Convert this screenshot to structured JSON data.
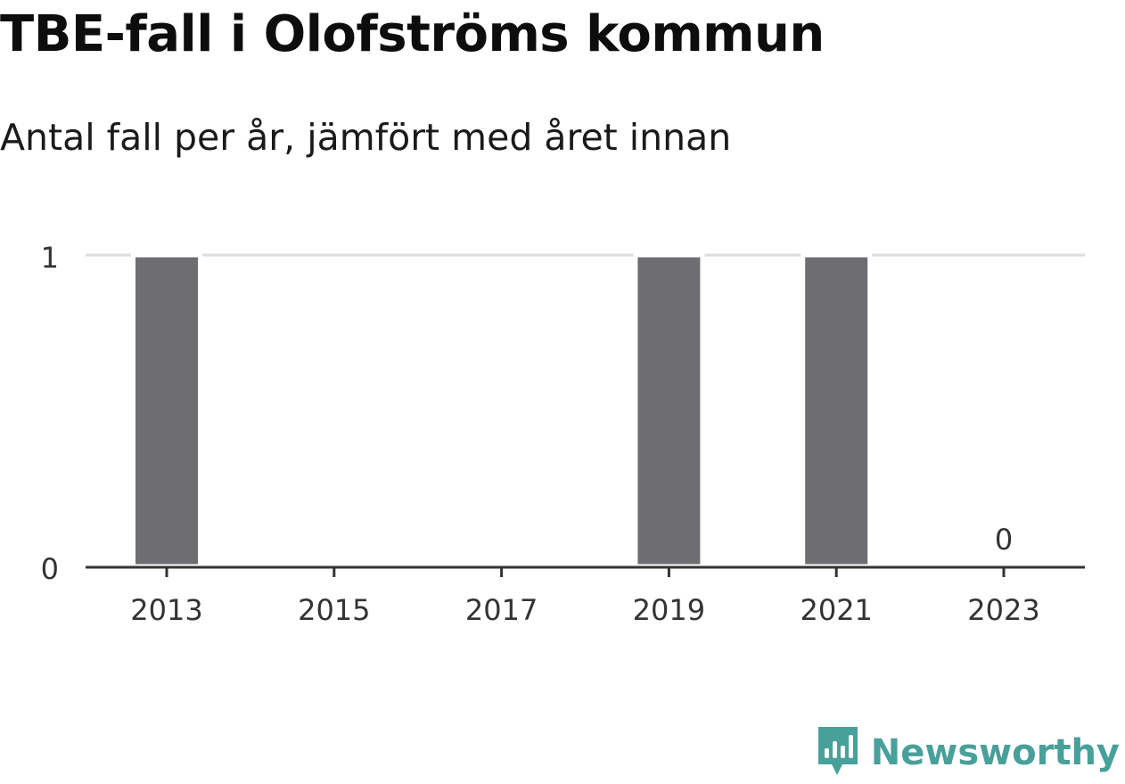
{
  "header": {
    "title": "TBE-fall i Olofströms kommun",
    "subtitle": "Antal fall per år, jämfört med året innan"
  },
  "chart_data": {
    "type": "bar",
    "categories": [
      "2013",
      "2014",
      "2015",
      "2016",
      "2017",
      "2018",
      "2019",
      "2020",
      "2021",
      "2022",
      "2023"
    ],
    "values": [
      1,
      0,
      0,
      0,
      0,
      0,
      1,
      0,
      1,
      0,
      0
    ],
    "ylim": [
      0,
      1
    ],
    "y_ticks": [
      0,
      1
    ],
    "x_tick_labels": [
      "2013",
      "2015",
      "2017",
      "2019",
      "2021",
      "2023"
    ],
    "data_labels": [
      {
        "category": "2023",
        "text": "0"
      }
    ],
    "bar_color": "#6e6d72",
    "grid": true,
    "grid_color": "#dddddd",
    "xlabel": "",
    "ylabel": ""
  },
  "brand": {
    "name": "Newsworthy",
    "color": "#48a09a"
  }
}
